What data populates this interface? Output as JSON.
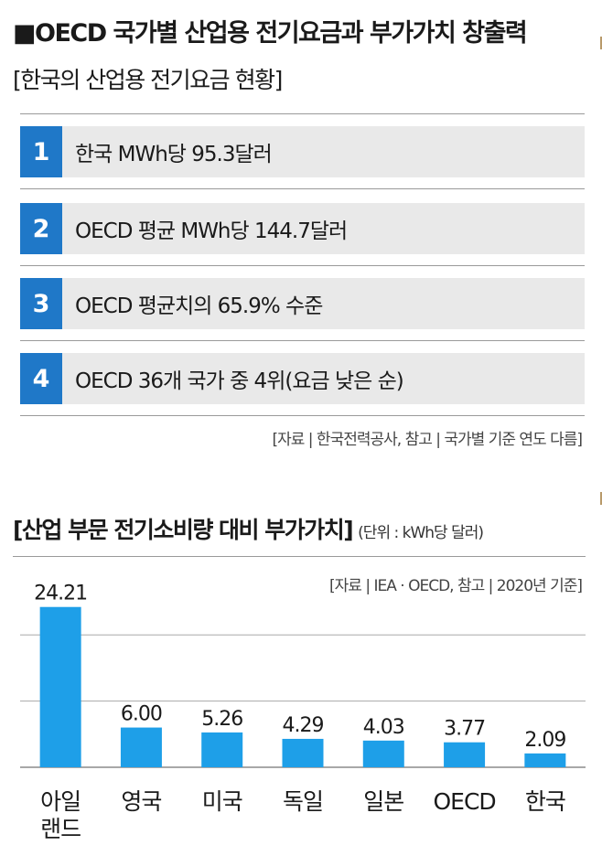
{
  "header": {
    "title": "■OECD 국가별 산업용 전기요금과 부가가치 창출력",
    "subtitle": "[한국의 산업용 전기요금 현황]"
  },
  "stats": [
    {
      "num": "1",
      "text": "한국 MWh당 95.3달러"
    },
    {
      "num": "2",
      "text": "OECD 평균 MWh당 144.7달러"
    },
    {
      "num": "3",
      "text": "OECD 평균치의 65.9% 수준"
    },
    {
      "num": "4",
      "text": "OECD 36개 국가 중 4위(요금 낮은 순)"
    }
  ],
  "source_top": "[자료 | 한국전력공사, 참고 | 국가별 기준 연도 다름]",
  "chart_section": {
    "title": "[산업 부문 전기소비량 대비 부가가치]",
    "unit": "(단위 : kWh당 달러)",
    "source": "[자료 | IEA · OECD, 참고 | 2020년 기준]"
  },
  "colors": {
    "accent": "#1f78c8",
    "bar": "#1e9fe8",
    "row_bg": "#e9e9e9"
  },
  "chart_data": {
    "type": "bar",
    "title": "[산업 부문 전기소비량 대비 부가가치]",
    "unit": "(단위 : kWh당 달러)",
    "categories": [
      [
        "아일",
        "랜드"
      ],
      [
        "영국"
      ],
      [
        "미국"
      ],
      [
        "독일"
      ],
      [
        "일본"
      ],
      [
        "OECD"
      ],
      [
        "한국"
      ]
    ],
    "values": [
      24.21,
      6.0,
      5.26,
      4.29,
      4.03,
      3.77,
      2.09
    ],
    "value_labels": [
      "24.21",
      "6.00",
      "5.26",
      "4.29",
      "4.03",
      "3.77",
      "2.09"
    ],
    "ylim": [
      0,
      25
    ],
    "grid": true,
    "legend": "none"
  }
}
